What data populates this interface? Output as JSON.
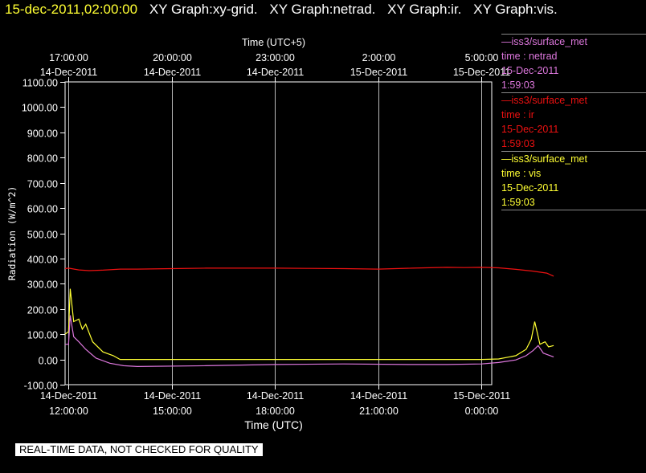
{
  "header": {
    "datetime": "15-dec-2011,02:00:00",
    "graphs": [
      "XY Graph:xy-grid.",
      "XY Graph:netrad.",
      "XY Graph:ir.",
      "XY Graph:vis."
    ]
  },
  "legend": [
    {
      "source": "—iss3/surface_met",
      "var": "time : netrad",
      "date": "15-Dec-2011",
      "time": "1:59:03",
      "color": "#dd77dd"
    },
    {
      "source": "—iss3/surface_met",
      "var": "time : ir",
      "date": "15-Dec-2011",
      "time": "1:59:03",
      "color": "#ee1111"
    },
    {
      "source": "—iss3/surface_met",
      "var": "time : vis",
      "date": "15-Dec-2011",
      "time": "1:59:03",
      "color": "#ffff33"
    }
  ],
  "notice": "REAL-TIME DATA, NOT CHECKED FOR QUALITY",
  "chart_data": {
    "type": "line",
    "xlabel_bottom": "Time (UTC)",
    "xlabel_top": "Time (UTC+5)",
    "ylabel": "Radiation (W/m^2)",
    "ylim": [
      -100,
      1100
    ],
    "xlim_hours": [
      11.9,
      24.3
    ],
    "grid": true,
    "yticks": [
      "-100.00",
      "0.00",
      "100.00",
      "200.00",
      "300.00",
      "400.00",
      "500.00",
      "600.00",
      "700.00",
      "800.00",
      "900.00",
      "1000.00",
      "1100.00"
    ],
    "bottom_ticks": [
      {
        "h": 12,
        "date": "14-Dec-2011",
        "time": "12:00:00"
      },
      {
        "h": 15,
        "date": "14-Dec-2011",
        "time": "15:00:00"
      },
      {
        "h": 18,
        "date": "14-Dec-2011",
        "time": "18:00:00"
      },
      {
        "h": 21,
        "date": "14-Dec-2011",
        "time": "21:00:00"
      },
      {
        "h": 24,
        "date": "15-Dec-2011",
        "time": "0:00:00"
      }
    ],
    "top_ticks": [
      {
        "h": 12,
        "time": "17:00:00",
        "date": "14-Dec-2011"
      },
      {
        "h": 15,
        "time": "20:00:00",
        "date": "14-Dec-2011"
      },
      {
        "h": 18,
        "time": "23:00:00",
        "date": "14-Dec-2011"
      },
      {
        "h": 21,
        "time": "2:00:00",
        "date": "15-Dec-2011"
      },
      {
        "h": 24,
        "time": "5:00:00",
        "date": "15-Dec-2011"
      }
    ],
    "series": [
      {
        "name": "ir",
        "color": "#ee1111",
        "x": [
          11.9,
          12.0,
          12.3,
          12.6,
          13.0,
          13.5,
          14.0,
          15.0,
          16.0,
          17.0,
          18.0,
          19.0,
          20.0,
          21.0,
          22.0,
          23.0,
          23.5,
          24.0,
          24.5,
          25.0,
          25.5,
          25.9,
          26.1
        ],
        "y": [
          360,
          362,
          355,
          352,
          354,
          358,
          358,
          360,
          362,
          362,
          362,
          361,
          360,
          358,
          362,
          365,
          364,
          365,
          363,
          357,
          350,
          342,
          330
        ]
      },
      {
        "name": "vis",
        "color": "#ffff33",
        "x": [
          11.9,
          12.0,
          12.05,
          12.15,
          12.3,
          12.4,
          12.5,
          12.7,
          13.0,
          13.3,
          13.5,
          14.0,
          16.0,
          18.0,
          20.0,
          22.0,
          23.0,
          24.0,
          24.5,
          25.0,
          25.3,
          25.45,
          25.55,
          25.7,
          25.85,
          25.95,
          26.1
        ],
        "y": [
          100,
          110,
          280,
          150,
          160,
          120,
          140,
          70,
          30,
          15,
          0,
          0,
          0,
          0,
          0,
          0,
          0,
          0,
          2,
          15,
          40,
          80,
          150,
          60,
          70,
          50,
          55
        ]
      },
      {
        "name": "netrad",
        "color": "#dd77dd",
        "x": [
          11.9,
          12.0,
          12.05,
          12.15,
          12.3,
          12.5,
          12.8,
          13.2,
          13.6,
          14.0,
          16.0,
          18.0,
          20.0,
          22.0,
          23.0,
          24.0,
          24.5,
          25.0,
          25.3,
          25.5,
          25.65,
          25.8,
          26.0,
          26.1
        ],
        "y": [
          60,
          60,
          175,
          90,
          70,
          40,
          5,
          -15,
          -25,
          -28,
          -25,
          -20,
          -18,
          -20,
          -20,
          -18,
          -12,
          -2,
          15,
          35,
          55,
          25,
          15,
          10
        ]
      }
    ]
  }
}
